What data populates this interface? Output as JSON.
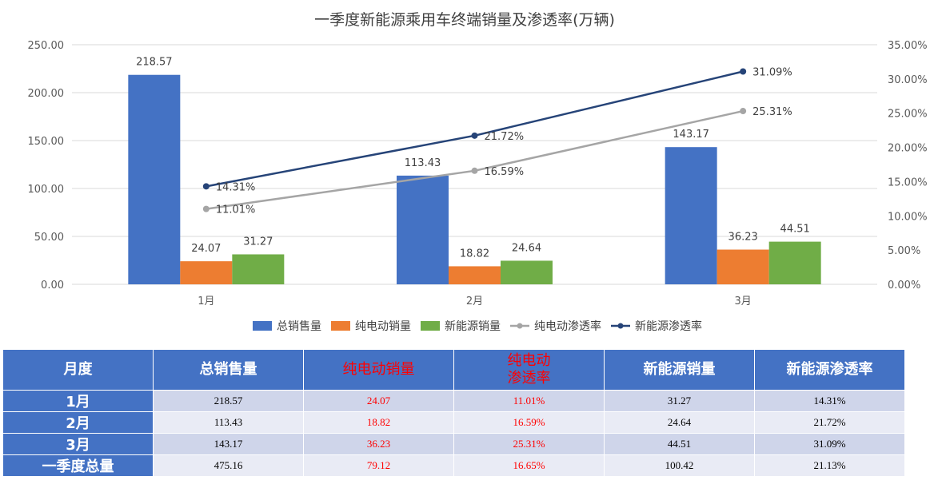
{
  "chart_data": {
    "type": "bar",
    "title": "一季度新能源乘用车终端销量及渗透率(万辆)",
    "categories": [
      "1月",
      "2月",
      "3月"
    ],
    "series": [
      {
        "name": "总销售量",
        "kind": "bar",
        "axis": "left",
        "color": "#4472c4",
        "values": [
          218.57,
          113.43,
          143.17
        ],
        "labels": [
          "218.57",
          "113.43",
          "143.17"
        ]
      },
      {
        "name": "纯电动销量",
        "kind": "bar",
        "axis": "left",
        "color": "#ed7d31",
        "values": [
          24.07,
          18.82,
          36.23
        ],
        "labels": [
          "24.07",
          "18.82",
          "36.23"
        ]
      },
      {
        "name": "新能源销量",
        "kind": "bar",
        "axis": "left",
        "color": "#70ad47",
        "values": [
          31.27,
          24.64,
          44.51
        ],
        "labels": [
          "31.27",
          "24.64",
          "44.51"
        ]
      },
      {
        "name": "纯电动渗透率",
        "kind": "line",
        "axis": "right",
        "color": "#a5a5a5",
        "values": [
          11.01,
          16.59,
          25.31
        ],
        "labels": [
          "11.01%",
          "16.59%",
          "25.31%"
        ]
      },
      {
        "name": "新能源渗透率",
        "kind": "line",
        "axis": "right",
        "color": "#264478",
        "values": [
          14.31,
          21.72,
          31.09
        ],
        "labels": [
          "14.31%",
          "21.72%",
          "31.09%"
        ]
      }
    ],
    "y_left": {
      "range": [
        0,
        250
      ],
      "ticks": [
        "0.00",
        "50.00",
        "100.00",
        "150.00",
        "200.00",
        "250.00"
      ]
    },
    "y_right": {
      "range": [
        0,
        35
      ],
      "ticks": [
        "0.00%",
        "5.00%",
        "10.00%",
        "15.00%",
        "20.00%",
        "25.00%",
        "30.00%",
        "35.00%"
      ]
    },
    "grid": true,
    "legend": "bottom"
  },
  "table": {
    "headers": [
      "月度",
      "总销售量",
      "纯电动销量",
      "纯电动渗透率",
      "新能源销量",
      "新能源渗透率"
    ],
    "header_lines": [
      [
        "月度"
      ],
      [
        "总销售量"
      ],
      [
        "纯电动销量"
      ],
      [
        "纯电动",
        "渗透率"
      ],
      [
        "新能源销量"
      ],
      [
        "新能源渗透率"
      ]
    ],
    "red_columns": [
      2,
      3
    ],
    "rows": [
      [
        "1月",
        "218.57",
        "24.07",
        "11.01%",
        "31.27",
        "14.31%"
      ],
      [
        "2月",
        "113.43",
        "18.82",
        "16.59%",
        "24.64",
        "21.72%"
      ],
      [
        "3月",
        "143.17",
        "36.23",
        "25.31%",
        "44.51",
        "31.09%"
      ],
      [
        "一季度总量",
        "475.16",
        "79.12",
        "16.65%",
        "100.42",
        "21.13%"
      ]
    ]
  }
}
